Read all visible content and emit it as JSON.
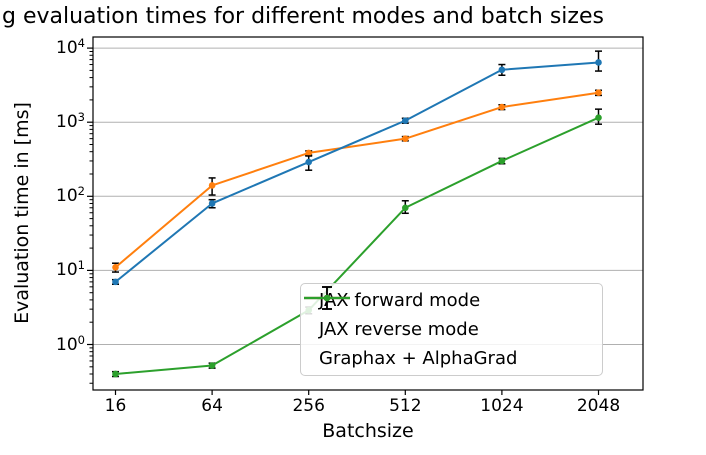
{
  "chart_data": {
    "type": "line",
    "title": "g evaluation times for different modes and batch sizes",
    "xlabel": "Batchsize",
    "ylabel": "Evaluation time in [ms]",
    "yscale": "log",
    "ylim": [
      0.24,
      14000
    ],
    "y_tick_exponents": [
      0,
      1,
      2,
      3,
      4
    ],
    "y_tick_base": "10",
    "grid": "horizontal-major-only",
    "legend_position": "lower-right-inside",
    "x_categories": [
      "16",
      "64",
      "256",
      "512",
      "1024",
      "2048"
    ],
    "series": [
      {
        "name": "JAX forward mode",
        "color": "#1f77b4",
        "values": [
          7,
          80,
          290,
          1050,
          5100,
          6400
        ],
        "err_low": [
          0.5,
          10,
          65,
          80,
          800,
          1500
        ],
        "err_high": [
          0.5,
          10,
          60,
          80,
          900,
          2700
        ]
      },
      {
        "name": "JAX reverse mode",
        "color": "#ff7f0e",
        "values": [
          11,
          140,
          385,
          600,
          1600,
          2500
        ],
        "err_low": [
          1.5,
          36,
          25,
          40,
          120,
          200
        ],
        "err_high": [
          1.5,
          37,
          25,
          40,
          120,
          200
        ]
      },
      {
        "name": "Graphax + AlphaGrad",
        "color": "#2ca02c",
        "values": [
          0.4,
          0.52,
          2.9,
          70,
          300,
          1150
        ],
        "err_low": [
          0.03,
          0.04,
          0.3,
          11,
          25,
          210
        ],
        "err_high": [
          0.03,
          0.04,
          0.3,
          17,
          25,
          350
        ]
      }
    ],
    "colors": {
      "grid": "#b0b0b0",
      "spine": "#000000",
      "errorbar": "#000000",
      "background": "#ffffff"
    }
  }
}
